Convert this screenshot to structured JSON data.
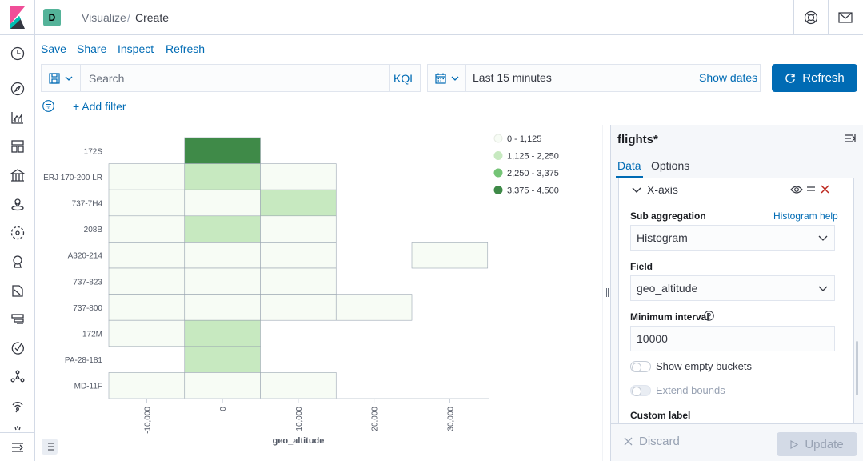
{
  "header": {
    "space_initial": "D",
    "breadcrumb_parent": "Visualize",
    "breadcrumb_sep": "/",
    "breadcrumb_current": "Create"
  },
  "top_menu": {
    "save": "Save",
    "share": "Share",
    "inspect": "Inspect",
    "refresh": "Refresh"
  },
  "query_bar": {
    "search_placeholder": "Search",
    "language": "KQL",
    "time_range": "Last 15 minutes",
    "show_dates": "Show dates",
    "refresh_label": "Refresh"
  },
  "filter_bar": {
    "add_filter": "+ Add filter"
  },
  "chart_data": {
    "type": "heatmap",
    "xlabel": "geo_altitude",
    "x_ticks": [
      "-10,000",
      "0",
      "10,000",
      "20,000",
      "30,000"
    ],
    "x_buckets": [
      -10000,
      0,
      10000,
      20000,
      30000
    ],
    "y_categories": [
      "172S",
      "ERJ 170-200 LR",
      "737-7H4",
      "208B",
      "A320-214",
      "737-823",
      "737-800",
      "172M",
      "PA-28-181",
      "MD-11F"
    ],
    "cells": [
      {
        "y": "172S",
        "x": 0,
        "bin": 3
      },
      {
        "y": "ERJ 170-200 LR",
        "x": -10000,
        "bin": 0
      },
      {
        "y": "ERJ 170-200 LR",
        "x": 0,
        "bin": 1
      },
      {
        "y": "ERJ 170-200 LR",
        "x": 10000,
        "bin": 0
      },
      {
        "y": "737-7H4",
        "x": -10000,
        "bin": 0
      },
      {
        "y": "737-7H4",
        "x": 0,
        "bin": 0
      },
      {
        "y": "737-7H4",
        "x": 10000,
        "bin": 1
      },
      {
        "y": "208B",
        "x": -10000,
        "bin": 0
      },
      {
        "y": "208B",
        "x": 0,
        "bin": 1
      },
      {
        "y": "208B",
        "x": 10000,
        "bin": 0
      },
      {
        "y": "A320-214",
        "x": -10000,
        "bin": 0
      },
      {
        "y": "A320-214",
        "x": 0,
        "bin": 0
      },
      {
        "y": "A320-214",
        "x": 10000,
        "bin": 0
      },
      {
        "y": "A320-214",
        "x": 30000,
        "bin": 0
      },
      {
        "y": "737-823",
        "x": -10000,
        "bin": 0
      },
      {
        "y": "737-823",
        "x": 0,
        "bin": 0
      },
      {
        "y": "737-823",
        "x": 10000,
        "bin": 0
      },
      {
        "y": "737-800",
        "x": -10000,
        "bin": 0
      },
      {
        "y": "737-800",
        "x": 0,
        "bin": 0
      },
      {
        "y": "737-800",
        "x": 10000,
        "bin": 0
      },
      {
        "y": "737-800",
        "x": 20000,
        "bin": 0
      },
      {
        "y": "172M",
        "x": -10000,
        "bin": 0
      },
      {
        "y": "172M",
        "x": 0,
        "bin": 1
      },
      {
        "y": "PA-28-181",
        "x": 0,
        "bin": 1
      },
      {
        "y": "MD-11F",
        "x": -10000,
        "bin": 0
      },
      {
        "y": "MD-11F",
        "x": 0,
        "bin": 0
      },
      {
        "y": "MD-11F",
        "x": 10000,
        "bin": 0
      }
    ],
    "legend": [
      {
        "label": "0 - 1,125",
        "color": "#f7fcf5"
      },
      {
        "label": "1,125 - 2,250",
        "color": "#c7e9c0"
      },
      {
        "label": "2,250 - 3,375",
        "color": "#74c476"
      },
      {
        "label": "3,375 - 4,500",
        "color": "#3f8a48"
      }
    ],
    "legend_position": "top-right"
  },
  "editor": {
    "index_pattern": "flights*",
    "tabs": [
      "Data",
      "Options"
    ],
    "active_tab": "Data",
    "agg_title": "X-axis",
    "sub_agg_label": "Sub aggregation",
    "sub_agg_help": "Histogram help",
    "sub_agg_value": "Histogram",
    "field_label": "Field",
    "field_value": "geo_altitude",
    "min_interval_label": "Minimum interval",
    "min_interval_value": "10000",
    "show_empty_label": "Show empty buckets",
    "extend_bounds_label": "Extend bounds",
    "custom_label_label": "Custom label",
    "discard": "Discard",
    "update": "Update"
  },
  "colors": {
    "accent": "#006bb4",
    "danger": "#bd271e",
    "space": "#54b399"
  }
}
